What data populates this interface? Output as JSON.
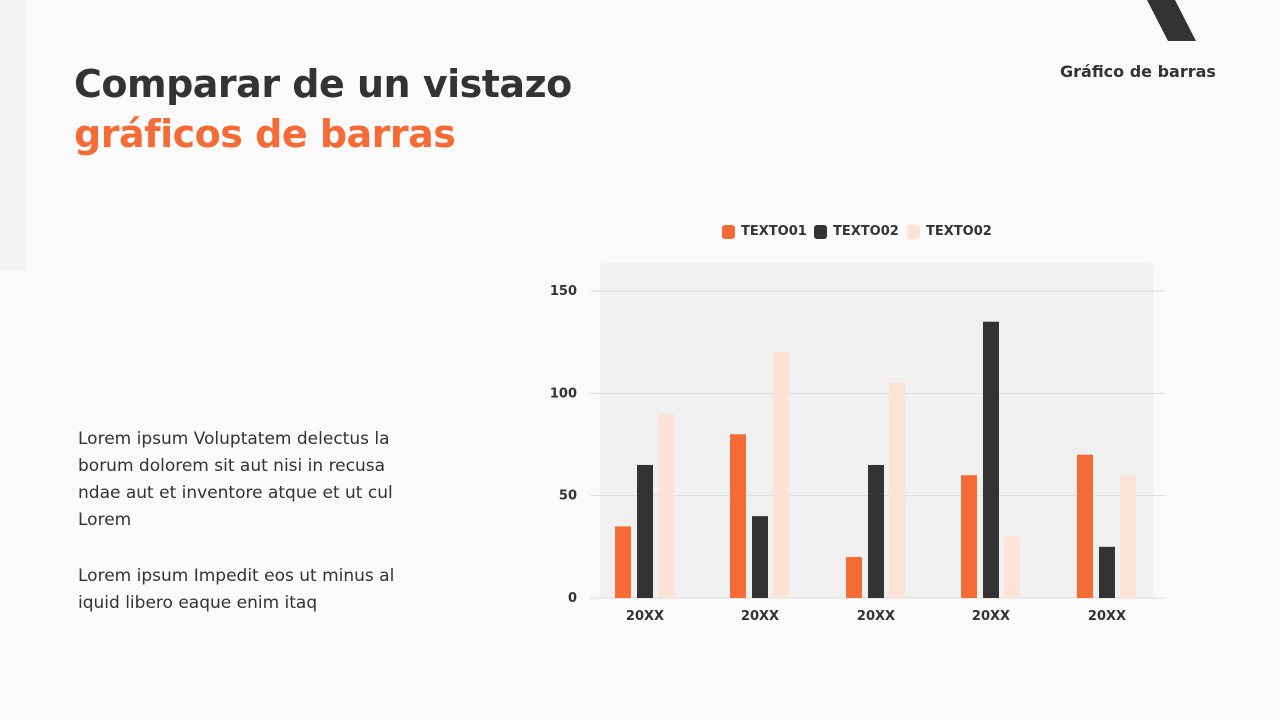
{
  "header": {
    "title_line1": "Comparar de un vistazo",
    "title_line2": "gráficos de barras",
    "section_label": "Gráfico de barras"
  },
  "body": {
    "paragraph1": "Lorem ipsum Voluptatem delectus la borum dolorem sit aut nisi in recusa ndae aut et inventore atque et ut cul Lorem",
    "paragraph2": "Lorem ipsum Impedit eos ut minus al iquid libero eaque enim itaq"
  },
  "colors": {
    "accent": "#f46b36",
    "dark": "#333333",
    "light": "#fde3d6"
  },
  "chart_data": {
    "type": "bar",
    "categories": [
      "20XX",
      "20XX",
      "20XX",
      "20XX",
      "20XX"
    ],
    "series": [
      {
        "name": "TEXTO01",
        "values": [
          35,
          80,
          20,
          60,
          70
        ],
        "color": "#f46b36"
      },
      {
        "name": "TEXTO02",
        "values": [
          65,
          40,
          65,
          135,
          25
        ],
        "color": "#333333"
      },
      {
        "name": "TEXTO02",
        "values": [
          90,
          120,
          105,
          30,
          60
        ],
        "color": "#fde3d6"
      }
    ],
    "yticks": [
      0,
      50,
      100,
      150
    ],
    "ylim": [
      0,
      150
    ],
    "grid": true,
    "legend": "top"
  }
}
